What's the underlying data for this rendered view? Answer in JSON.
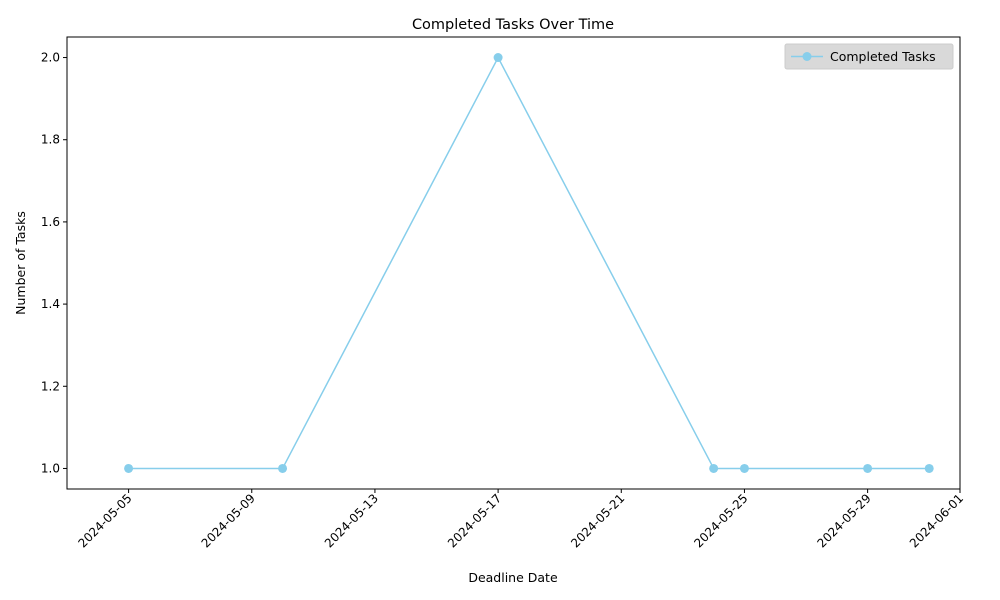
{
  "chart_data": {
    "type": "line",
    "title": "Completed Tasks Over Time",
    "xlabel": "Deadline Date",
    "ylabel": "Number of Tasks",
    "x": [
      "2024-05-05",
      "2024-05-10",
      "2024-05-17",
      "2024-05-24",
      "2024-05-25",
      "2024-05-29",
      "2024-05-31"
    ],
    "series": [
      {
        "name": "Completed Tasks",
        "values": [
          1,
          1,
          2,
          1,
          1,
          1,
          1
        ],
        "color": "#87CEEB",
        "marker": "circle"
      }
    ],
    "xlim": [
      "2024-05-03",
      "2024-06-01"
    ],
    "ylim": [
      0.95,
      2.05
    ],
    "x_ticks": [
      "2024-05-05",
      "2024-05-09",
      "2024-05-13",
      "2024-05-17",
      "2024-05-21",
      "2024-05-25",
      "2024-05-29",
      "2024-06-01"
    ],
    "y_ticks": [
      "1.0",
      "1.2",
      "1.4",
      "1.6",
      "1.8",
      "2.0"
    ],
    "grid": false,
    "legend_position": "top-right"
  }
}
